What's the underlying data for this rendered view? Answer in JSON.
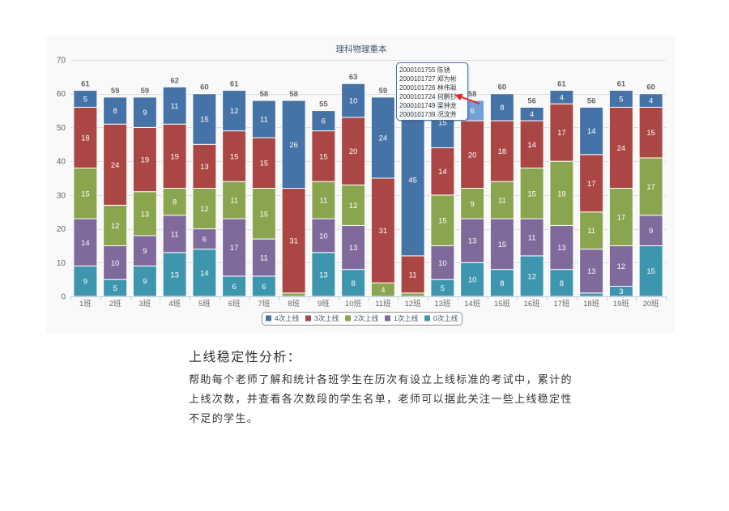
{
  "chart_data": {
    "type": "bar",
    "stacking": "normal",
    "title": "理科物理重本",
    "categories": [
      "1班",
      "2班",
      "3班",
      "4班",
      "5班",
      "6班",
      "7班",
      "8班",
      "9班",
      "10班",
      "11班",
      "12班",
      "13班",
      "14班",
      "15班",
      "16班",
      "17班",
      "18班",
      "19班",
      "20班"
    ],
    "ylim": [
      0,
      70
    ],
    "yticks": [
      0,
      10,
      20,
      30,
      40,
      50,
      60,
      70
    ],
    "grid": true,
    "legend_position": "bottom",
    "series": [
      {
        "name": "4次上线",
        "color": "#4572A7",
        "values": [
          5,
          8,
          9,
          11,
          15,
          12,
          11,
          26,
          6,
          10,
          24,
          45,
          15,
          6,
          8,
          4,
          4,
          14,
          5,
          4
        ]
      },
      {
        "name": "3次上线",
        "color": "#AA4643",
        "values": [
          18,
          24,
          19,
          19,
          13,
          15,
          15,
          31,
          15,
          20,
          31,
          11,
          14,
          20,
          18,
          14,
          17,
          17,
          24,
          15
        ]
      },
      {
        "name": "2次上线",
        "color": "#89A54E",
        "values": [
          15,
          12,
          13,
          8,
          12,
          11,
          15,
          1,
          11,
          12,
          4,
          1,
          15,
          9,
          11,
          15,
          19,
          11,
          17,
          17
        ]
      },
      {
        "name": "1次上线",
        "color": "#80699B",
        "values": [
          14,
          10,
          9,
          11,
          6,
          17,
          11,
          0,
          10,
          13,
          0,
          0,
          10,
          13,
          15,
          11,
          13,
          13,
          12,
          9
        ]
      },
      {
        "name": "0次上线",
        "color": "#3D96AE",
        "values": [
          9,
          5,
          9,
          13,
          14,
          6,
          6,
          0,
          13,
          8,
          0,
          0,
          5,
          10,
          8,
          12,
          8,
          1,
          3,
          15
        ]
      }
    ],
    "stack_totals": [
      61,
      59,
      59,
      62,
      60,
      61,
      58,
      58,
      55,
      63,
      59,
      null,
      null,
      58,
      60,
      56,
      61,
      56,
      61,
      60
    ],
    "tooltip": {
      "category": "14班",
      "series": "4次上线",
      "lines": [
        "2000101755 陈锈",
        "2000101727 郑为彬",
        "2000101726 林伟聪",
        "2000101724 何鹏钐",
        "2000101749 梁钟龙",
        "2000101739 况汶芳"
      ]
    }
  },
  "analysis": {
    "heading": "上线稳定性分析：",
    "lines": [
      "帮助每个老师了解和统计各班学生在历次有设立上线标准的考试中，累计的",
      "上线次数，并查看各次数段的学生名单，老师可以据此关注一些上线稳定性",
      "不足的学生。"
    ]
  }
}
